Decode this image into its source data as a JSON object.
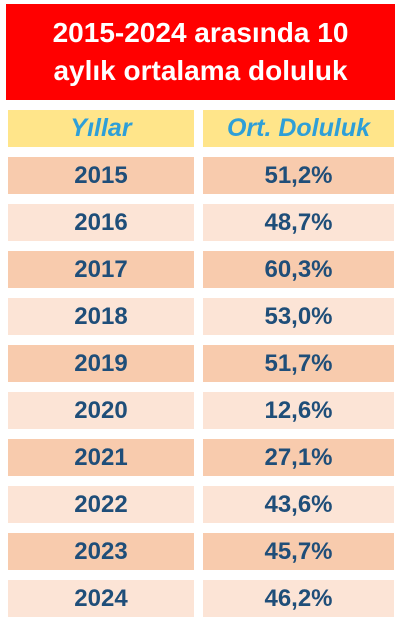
{
  "title_lines": [
    "2015-2024 arasında 10",
    "aylık ortalama doluluk"
  ],
  "chart_data": {
    "type": "table",
    "columns": [
      "Yıllar",
      "Ort. Doluluk"
    ],
    "rows": [
      [
        "2015",
        "51,2%"
      ],
      [
        "2016",
        "48,7%"
      ],
      [
        "2017",
        "60,3%"
      ],
      [
        "2018",
        "53,0%"
      ],
      [
        "2019",
        "51,7%"
      ],
      [
        "2020",
        "12,6%"
      ],
      [
        "2021",
        "27,1%"
      ],
      [
        "2022",
        "43,6%"
      ],
      [
        "2023",
        "45,7%"
      ],
      [
        "2024",
        "46,2%"
      ]
    ]
  },
  "colors": {
    "title_background": "#ff0000",
    "header_background": "#ffe58a",
    "header_text": "#2e9fd8",
    "row_dark": "#f8cbad",
    "row_light": "#fce4d6",
    "body_text": "#1f4e79"
  }
}
